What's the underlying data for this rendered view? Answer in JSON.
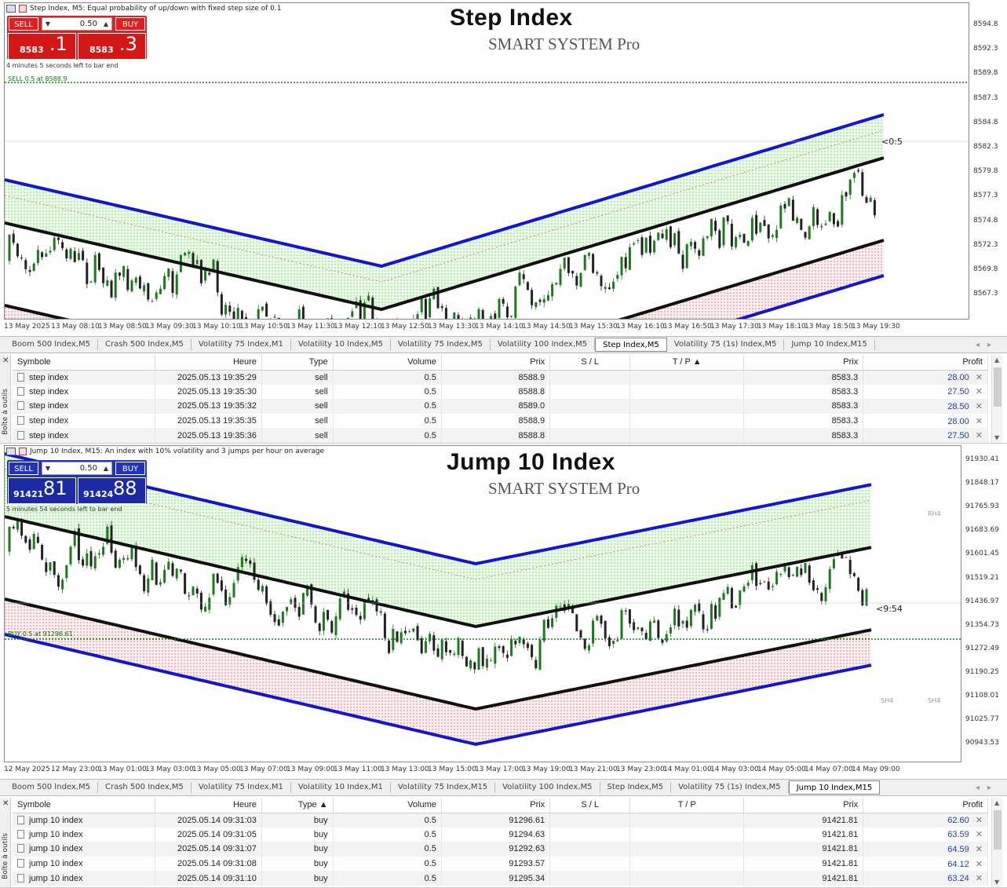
{
  "charts": [
    {
      "header": "Step Index, M5:  Equal probability of up/down with fixed step size of 0.1",
      "title": "Step Index",
      "subtitle": "SMART SYSTEM Pro",
      "sell_label": "SELL",
      "buy_label": "BUY",
      "lot": "0.50",
      "bid_small": "8583",
      "bid_big": ".1",
      "ask_small": "8583",
      "ask_big": ".3",
      "time_left": "4 minutes 5 seconds left to bar end",
      "order_line_label": "SELL 0.5 at 8588.9",
      "countdown": "<0:5",
      "current_price_tag": "8583.1",
      "accent": "#e02020",
      "y_labels": [
        "8594.8",
        "8592.3",
        "8589.8",
        "8587.3",
        "8584.8",
        "8582.3",
        "8579.8",
        "8577.3",
        "8574.8",
        "8572.3",
        "8569.8",
        "8567.3"
      ],
      "x_labels": [
        "13 May 2025",
        "13 May 08:10",
        "13 May 08:50",
        "13 May 09:30",
        "13 May 10:10",
        "13 May 10:50",
        "13 May 11:30",
        "13 May 12:10",
        "13 May 12:50",
        "13 May 13:30",
        "13 May 14:10",
        "13 May 14:50",
        "13 May 15:30",
        "13 May 16:10",
        "13 May 16:50",
        "13 May 17:30",
        "13 May 18:10",
        "13 May 18:50",
        "13 May 19:30"
      ],
      "right_labels": [],
      "tabs": [
        "Boom 500 Index,M5",
        "Crash 500 Index,M5",
        "Volatility 75 Index,M1",
        "Volatility 10 Index,M5",
        "Volatility 75 Index,M5",
        "Volatility 100 Index,M5",
        "Step Index,M5",
        "Volatility 75 (1s) Index,M5",
        "Jump 10 Index,M15"
      ],
      "active_tab": 6,
      "columns": [
        "Symbole",
        "Heure",
        "Type",
        "Volume",
        "Prix",
        "S / L",
        "T / P",
        "Prix",
        "Profit"
      ],
      "rows": [
        {
          "symbol": "step index",
          "time": "2025.05.13 19:35:29",
          "type": "sell",
          "volume": "0.5",
          "price": "8588.9",
          "sl": "",
          "tp": "",
          "cur": "8583.3",
          "profit": "28.00"
        },
        {
          "symbol": "step index",
          "time": "2025.05.13 19:35:30",
          "type": "sell",
          "volume": "0.5",
          "price": "8588.8",
          "sl": "",
          "tp": "",
          "cur": "8583.3",
          "profit": "27.50"
        },
        {
          "symbol": "step index",
          "time": "2025.05.13 19:35:32",
          "type": "sell",
          "volume": "0.5",
          "price": "8589.0",
          "sl": "",
          "tp": "",
          "cur": "8583.3",
          "profit": "28.50"
        },
        {
          "symbol": "step index",
          "time": "2025.05.13 19:35:35",
          "type": "sell",
          "volume": "0.5",
          "price": "8588.9",
          "sl": "",
          "tp": "",
          "cur": "8583.3",
          "profit": "28.00"
        },
        {
          "symbol": "step index",
          "time": "2025.05.13 19:35:36",
          "type": "sell",
          "volume": "0.5",
          "price": "8588.8",
          "sl": "",
          "tp": "",
          "cur": "8583.3",
          "profit": "27.50"
        }
      ],
      "side_text": "Boîte à outils"
    },
    {
      "header": "Jump 10 Index, M15:  An index with 10% volatility and 3 jumps per hour on average",
      "title": "Jump 10 Index",
      "subtitle": "SMART SYSTEM Pro",
      "sell_label": "SELL",
      "buy_label": "BUY",
      "lot": "0.50",
      "bid_small": "91421",
      "bid_big": "81",
      "ask_small": "91424",
      "ask_big": "88",
      "time_left": "5 minutes 54 seconds left to bar end",
      "order_line_label": "BUY 0.5 at 91296.61",
      "countdown": "<9:54",
      "current_price_tag": "91421.81",
      "accent": "#2333b8",
      "y_labels": [
        "91930.41",
        "91848.17",
        "91765.93",
        "91683.69",
        "91601.45",
        "91519.21",
        "91436.97",
        "91354.73",
        "91272.49",
        "91190.25",
        "91108.01",
        "91025.77",
        "90943.53"
      ],
      "x_labels": [
        "12 May 2025",
        "12 May 23:00",
        "13 May 01:00",
        "13 May 03:00",
        "13 May 05:00",
        "13 May 07:00",
        "13 May 09:00",
        "13 May 11:00",
        "13 May 13:00",
        "13 May 15:00",
        "13 May 17:00",
        "13 May 19:00",
        "13 May 21:00",
        "13 May 23:00",
        "14 May 01:00",
        "14 May 03:00",
        "14 May 05:00",
        "14 May 07:00",
        "14 May 09:00"
      ],
      "right_labels": [
        "RH4",
        "SH4",
        "SH4"
      ],
      "tabs": [
        "Boom 500 Index,M5",
        "Crash 500 Index,M5",
        "Volatility 75 Index,M1",
        "Volatility 10 Index,M1",
        "Volatility 75 Index,M15",
        "Volatility 100 Index,M5",
        "Step Index,M5",
        "Volatility 75 (1s) Index,M5",
        "Jump 10 Index,M15"
      ],
      "active_tab": 8,
      "columns": [
        "Symbole",
        "Heure",
        "Type",
        "Volume",
        "Prix",
        "S / L",
        "T / P",
        "Prix",
        "Profit"
      ],
      "rows": [
        {
          "symbol": "jump 10 index",
          "time": "2025.05.14 09:31:03",
          "type": "buy",
          "volume": "0.5",
          "price": "91296.61",
          "sl": "",
          "tp": "",
          "cur": "91421.81",
          "profit": "62.60"
        },
        {
          "symbol": "jump 10 index",
          "time": "2025.05.14 09:31:05",
          "type": "buy",
          "volume": "0.5",
          "price": "91294.63",
          "sl": "",
          "tp": "",
          "cur": "91421.81",
          "profit": "63.59"
        },
        {
          "symbol": "jump 10 index",
          "time": "2025.05.14 09:31:07",
          "type": "buy",
          "volume": "0.5",
          "price": "91292.63",
          "sl": "",
          "tp": "",
          "cur": "91421.81",
          "profit": "64.59"
        },
        {
          "symbol": "jump 10 index",
          "time": "2025.05.14 09:31:08",
          "type": "buy",
          "volume": "0.5",
          "price": "91293.57",
          "sl": "",
          "tp": "",
          "cur": "91421.81",
          "profit": "64.12"
        },
        {
          "symbol": "jump 10 index",
          "time": "2025.05.14 09:31:10",
          "type": "buy",
          "volume": "0.5",
          "price": "91295.34",
          "sl": "",
          "tp": "",
          "cur": "91421.81",
          "profit": "63.24"
        }
      ],
      "side_text": "Boîte à outils"
    }
  ]
}
